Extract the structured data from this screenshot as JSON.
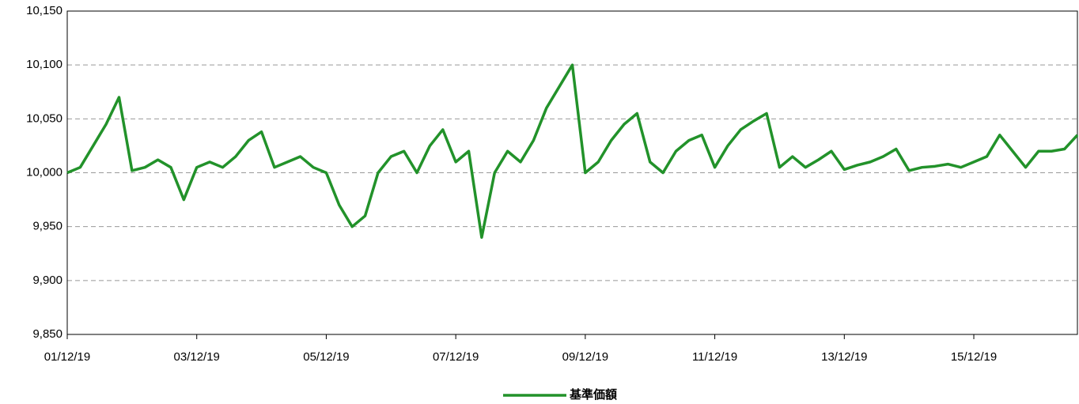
{
  "chart_data": {
    "type": "line",
    "categories": [
      "01/12/19",
      null,
      null,
      null,
      null,
      null,
      null,
      null,
      null,
      null,
      "03/12/19",
      null,
      null,
      null,
      null,
      null,
      null,
      null,
      null,
      null,
      "05/12/19",
      null,
      null,
      null,
      null,
      null,
      null,
      null,
      null,
      null,
      "07/12/19",
      null,
      null,
      null,
      null,
      null,
      null,
      null,
      null,
      null,
      "09/12/19",
      null,
      null,
      null,
      null,
      null,
      null,
      null,
      null,
      null,
      "11/12/19",
      null,
      null,
      null,
      null,
      null,
      null,
      null,
      null,
      null,
      "13/12/19",
      null,
      null,
      null,
      null,
      null,
      null,
      null,
      null,
      null,
      "15/12/19",
      null,
      null,
      null,
      null,
      null,
      null,
      null,
      null
    ],
    "series": [
      {
        "name": "基準価額",
        "color": "#22922a",
        "values": [
          10000,
          10005,
          10025,
          10045,
          10070,
          10002,
          10005,
          10012,
          10005,
          9975,
          10005,
          10010,
          10005,
          10015,
          10030,
          10038,
          10005,
          10010,
          10015,
          10005,
          10000,
          9970,
          9950,
          9960,
          10000,
          10015,
          10020,
          10000,
          10025,
          10040,
          10010,
          10020,
          9940,
          10000,
          10020,
          10010,
          10030,
          10060,
          10080,
          10100,
          10000,
          10010,
          10030,
          10045,
          10055,
          10010,
          10000,
          10020,
          10030,
          10035,
          10005,
          10025,
          10040,
          10048,
          10055,
          10005,
          10015,
          10005,
          10012,
          10020,
          10003,
          10007,
          10010,
          10015,
          10022,
          10002,
          10005,
          10006,
          10008,
          10005,
          10010,
          10015,
          10035,
          10020,
          10005,
          10020,
          10020,
          10022,
          10035
        ]
      }
    ],
    "ylim": [
      9850,
      10150
    ],
    "yticks": [
      {
        "value": 9850,
        "label": "9,850"
      },
      {
        "value": 9900,
        "label": "9,900"
      },
      {
        "value": 9950,
        "label": "9,950"
      },
      {
        "value": 10000,
        "label": "10,000"
      },
      {
        "value": 10050,
        "label": "10,050"
      },
      {
        "value": 10100,
        "label": "10,100"
      },
      {
        "value": 10150,
        "label": "10,150"
      }
    ],
    "grid": true
  }
}
